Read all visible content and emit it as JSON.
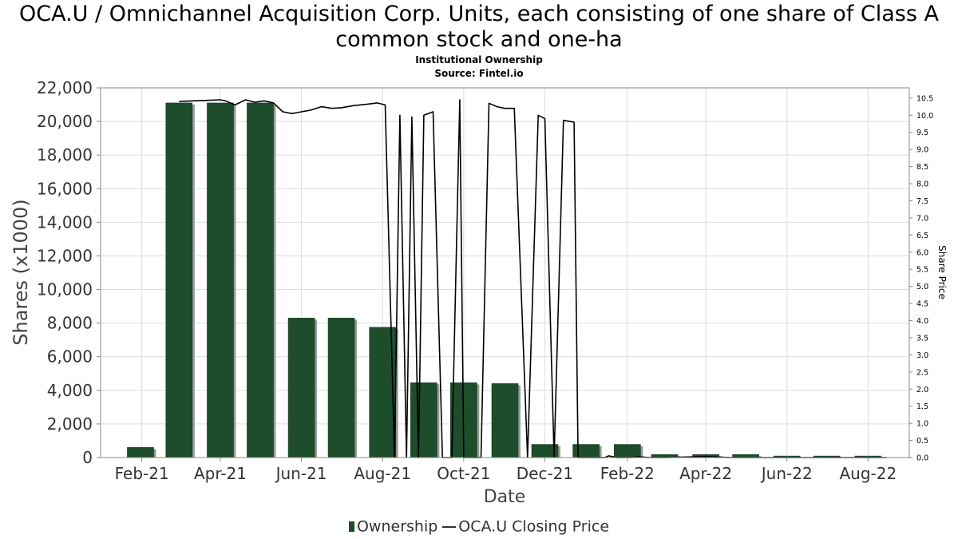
{
  "title": "OCA.U / Omnichannel Acquisition Corp. Units, each consisting of one share of Class A common stock and one-ha",
  "subtitle1": "Institutional Ownership",
  "subtitle2": "Source: Fintel.io",
  "colors": {
    "bar": "#1e4d2b",
    "bar_shadow": "#999999",
    "line": "#000000",
    "grid": "#dddddd"
  },
  "chart_data": {
    "type": "bar",
    "xlabel": "Date",
    "ylabel": "Shares (x1000)",
    "y2label": "Share Price",
    "ylim": [
      0,
      22000
    ],
    "y2lim": [
      0,
      10.8
    ],
    "grid": true,
    "legend_position": "bottom",
    "x_ticks": [
      "Feb-21",
      "Apr-21",
      "Jun-21",
      "Aug-21",
      "Oct-21",
      "Dec-21",
      "Feb-22",
      "Apr-22",
      "Jun-22",
      "Aug-22"
    ],
    "y_ticks": [
      "0",
      "2,000",
      "4,000",
      "6,000",
      "8,000",
      "10,000",
      "12,000",
      "14,000",
      "16,000",
      "18,000",
      "20,000",
      "22,000"
    ],
    "y2_ticks": [
      "0.0",
      "0.5",
      "1.0",
      "1.5",
      "2.0",
      "2.5",
      "3.0",
      "3.5",
      "4.0",
      "4.5",
      "5.0",
      "5.5",
      "6.0",
      "6.5",
      "7.0",
      "7.5",
      "8.0",
      "8.5",
      "9.0",
      "9.5",
      "10.0",
      "10.5"
    ],
    "series": [
      {
        "name": "Ownership",
        "kind": "bar",
        "dates": [
          "2021-01-31",
          "2021-03-01",
          "2021-04-01",
          "2021-05-01",
          "2021-06-01",
          "2021-07-01",
          "2021-08-01",
          "2021-09-01",
          "2021-10-01",
          "2021-11-01",
          "2021-12-01",
          "2022-01-01",
          "2022-02-01",
          "2022-03-01",
          "2022-04-01",
          "2022-05-01",
          "2022-06-01",
          "2022-07-01",
          "2022-08-01"
        ],
        "values": [
          600,
          21100,
          21100,
          21100,
          8300,
          8300,
          7750,
          4450,
          4450,
          4400,
          780,
          780,
          780,
          180,
          180,
          180,
          90,
          90,
          90
        ]
      },
      {
        "name": "OCA.U Closing Price",
        "kind": "line",
        "dates": [
          "2021-03-01",
          "2021-04-01",
          "2021-04-05",
          "2021-04-12",
          "2021-04-20",
          "2021-04-27",
          "2021-05-04",
          "2021-05-11",
          "2021-05-18",
          "2021-05-25",
          "2021-06-01",
          "2021-06-08",
          "2021-06-16",
          "2021-06-24",
          "2021-07-01",
          "2021-07-10",
          "2021-07-20",
          "2021-07-28",
          "2021-08-03",
          "2021-08-10",
          "2021-08-14",
          "2021-08-19",
          "2021-08-23",
          "2021-08-28",
          "2021-09-01",
          "2021-09-08",
          "2021-09-15",
          "2021-09-22",
          "2021-09-28",
          "2021-10-01",
          "2021-10-08",
          "2021-10-14",
          "2021-10-20",
          "2021-10-26",
          "2021-11-01",
          "2021-11-08",
          "2021-11-18",
          "2021-11-26",
          "2021-12-01",
          "2021-12-08",
          "2021-12-15",
          "2021-12-23",
          "2021-12-26",
          "2022-01-02",
          "2022-01-08",
          "2022-01-15",
          "2022-01-18",
          "2022-01-24",
          "2022-01-30",
          "2022-02-03",
          "2022-02-10",
          "2022-02-18",
          "2022-03-01",
          "2022-04-01",
          "2022-04-20",
          "2022-05-01",
          "2022-08-15"
        ],
        "values": [
          10.4,
          10.45,
          10.42,
          10.3,
          10.45,
          10.38,
          10.42,
          10.36,
          10.1,
          10.05,
          10.1,
          10.15,
          10.25,
          10.2,
          10.22,
          10.28,
          10.32,
          10.36,
          10.3,
          0.0,
          10.0,
          0.0,
          9.95,
          0.0,
          10.0,
          10.1,
          0.0,
          0.0,
          10.45,
          0.0,
          0.0,
          0.0,
          10.35,
          10.25,
          10.2,
          10.2,
          0.0,
          10.0,
          9.9,
          0.0,
          9.85,
          9.8,
          0.0,
          0.0,
          0.0,
          0.0,
          0.05,
          0.0,
          0.0,
          0.0,
          0.02,
          0.0,
          0.0,
          0.03,
          0.0,
          0.0,
          0.0
        ]
      }
    ]
  }
}
